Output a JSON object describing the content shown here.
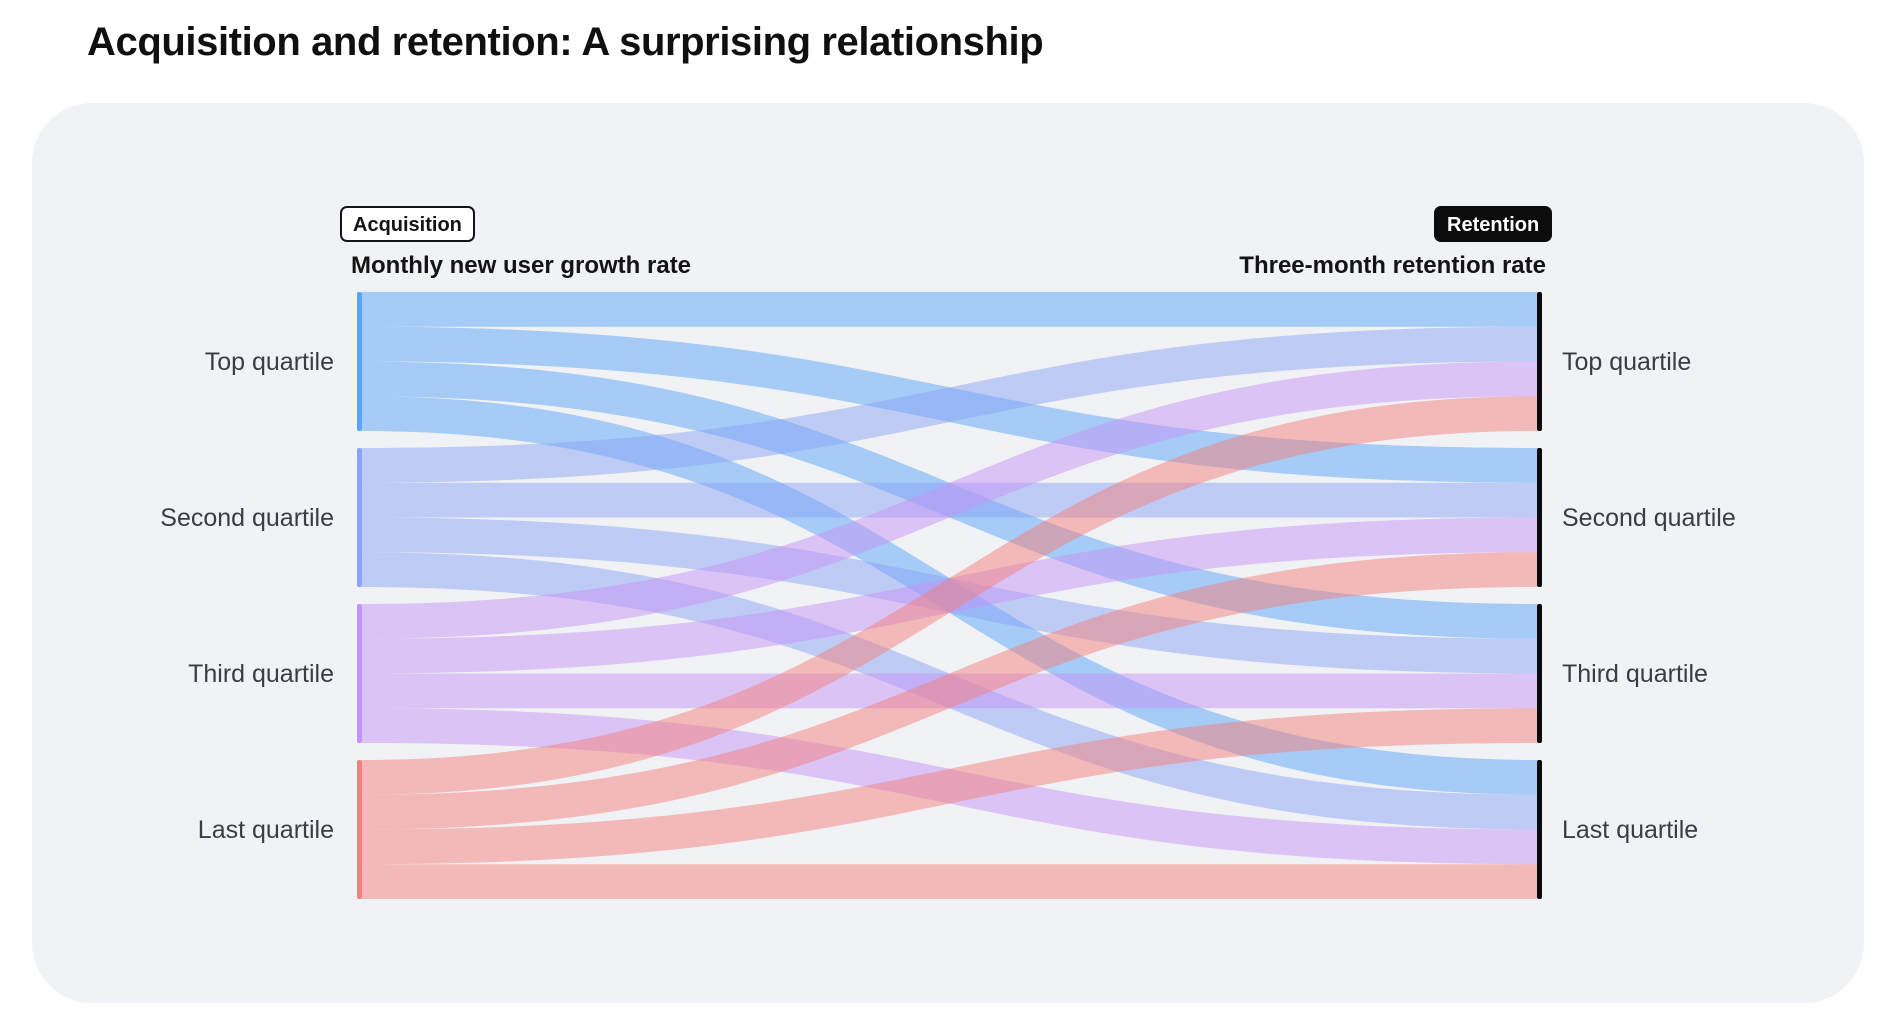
{
  "title": "Acquisition and retention: A surprising relationship",
  "left_tag": "Acquisition",
  "right_tag": "Retention",
  "left_axis_title": "Monthly new user growth rate",
  "right_axis_title": "Three-month retention rate",
  "chart_data": {
    "type": "sankey",
    "title": "Acquisition and retention: A surprising relationship",
    "source_axis": "Monthly new user growth rate",
    "target_axis": "Three-month retention rate",
    "left_nodes": [
      "Top quartile",
      "Second quartile",
      "Third quartile",
      "Last quartile"
    ],
    "right_nodes": [
      "Top quartile",
      "Second quartile",
      "Third quartile",
      "Last quartile"
    ],
    "node_colors": [
      "#5aa4f7",
      "#8ba3f5",
      "#c593f5",
      "#f47f7b"
    ],
    "link_colors": [
      "#a1c9f8",
      "#b9c6f9",
      "#dcc1f8",
      "#f7b6b8"
    ],
    "links": [
      {
        "source": "Top quartile",
        "target": "Top quartile",
        "value": 1
      },
      {
        "source": "Top quartile",
        "target": "Second quartile",
        "value": 1
      },
      {
        "source": "Top quartile",
        "target": "Third quartile",
        "value": 1
      },
      {
        "source": "Top quartile",
        "target": "Last quartile",
        "value": 1
      },
      {
        "source": "Second quartile",
        "target": "Top quartile",
        "value": 1
      },
      {
        "source": "Second quartile",
        "target": "Second quartile",
        "value": 1
      },
      {
        "source": "Second quartile",
        "target": "Third quartile",
        "value": 1
      },
      {
        "source": "Second quartile",
        "target": "Last quartile",
        "value": 1
      },
      {
        "source": "Third quartile",
        "target": "Top quartile",
        "value": 1
      },
      {
        "source": "Third quartile",
        "target": "Second quartile",
        "value": 1
      },
      {
        "source": "Third quartile",
        "target": "Third quartile",
        "value": 1
      },
      {
        "source": "Third quartile",
        "target": "Last quartile",
        "value": 1
      },
      {
        "source": "Last quartile",
        "target": "Top quartile",
        "value": 1
      },
      {
        "source": "Last quartile",
        "target": "Second quartile",
        "value": 1
      },
      {
        "source": "Last quartile",
        "target": "Third quartile",
        "value": 1
      },
      {
        "source": "Last quartile",
        "target": "Last quartile",
        "value": 1
      }
    ]
  }
}
